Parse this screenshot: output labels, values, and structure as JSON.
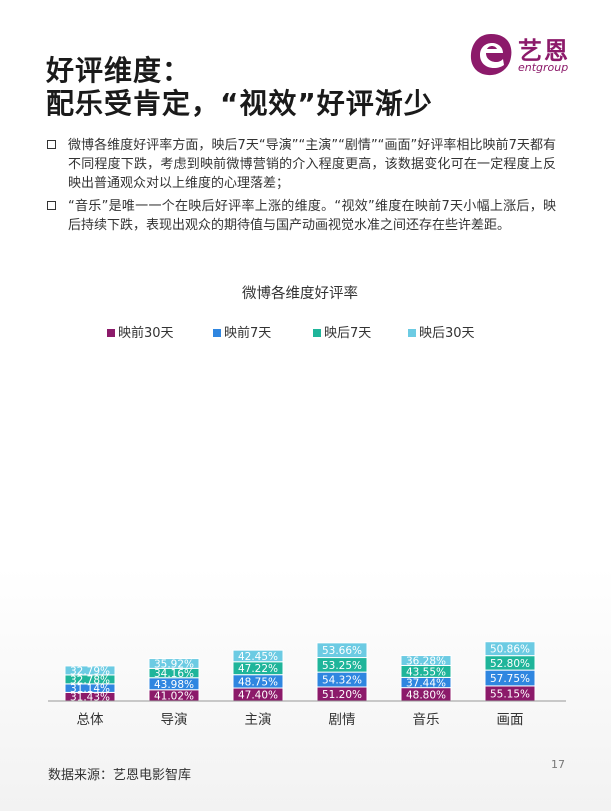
{
  "title_lines": [
    "好评维度：",
    "配乐受肯定，“视效”好评渐少"
  ],
  "logo": {
    "name": "艺恩",
    "sub": "entgroup",
    "color": "#8c1a6a",
    "icon": "entgroup-e-logo-icon"
  },
  "bullets": [
    "微博各维度好评率方面，映后7天“导演”“主演”“剧情”“画面”好评率相比映前7天都有不同程度下跌，考虑到映前微博营销的介入程度更高，该数据变化可在一定程度上反映出普通观众对以上维度的心理落差；",
    "“音乐”是唯一一个在映后好评率上涨的维度。“视效”维度在映前7天小幅上涨后，映后持续下跌，表现出观众的期待值与国产动画视觉水准之间还存在些许差距。"
  ],
  "chart_data": {
    "type": "bar",
    "stacked": true,
    "title": "微博各维度好评率",
    "categories": [
      "总体",
      "导演",
      "主演",
      "剧情",
      "音乐",
      "画面"
    ],
    "series": [
      {
        "name": "映前30天",
        "color": "#8c1a6a",
        "values": [
          31.43,
          41.02,
          47.4,
          51.2,
          48.8,
          55.15
        ]
      },
      {
        "name": "映前7天",
        "color": "#2f86e0",
        "values": [
          31.14,
          43.98,
          48.75,
          54.32,
          37.44,
          57.75
        ]
      },
      {
        "name": "映后7天",
        "color": "#1fb59a",
        "values": [
          32.78,
          34.16,
          47.22,
          53.25,
          43.55,
          52.8
        ]
      },
      {
        "name": "映后30天",
        "color": "#6ccbe3",
        "values": [
          32.79,
          35.92,
          42.45,
          53.66,
          36.28,
          50.86
        ]
      }
    ],
    "labels": [
      [
        "31.43%",
        "41.02%",
        "47.40%",
        "51.20%",
        "48.80%",
        "55.15%"
      ],
      [
        "31.14%",
        "43.98%",
        "48.75%",
        "54.32%",
        "37.44%",
        "57.75%"
      ],
      [
        "32.78%",
        "34.16%",
        "47.22%",
        "53.25%",
        "43.55%",
        "52.80%"
      ],
      [
        "32.79%",
        "35.92%",
        "42.45%",
        "53.66%",
        "36.28%",
        "50.86%"
      ]
    ],
    "legend_position": "top",
    "grid": false
  },
  "source": "数据来源：艺恩电影智库",
  "page_number": "17"
}
